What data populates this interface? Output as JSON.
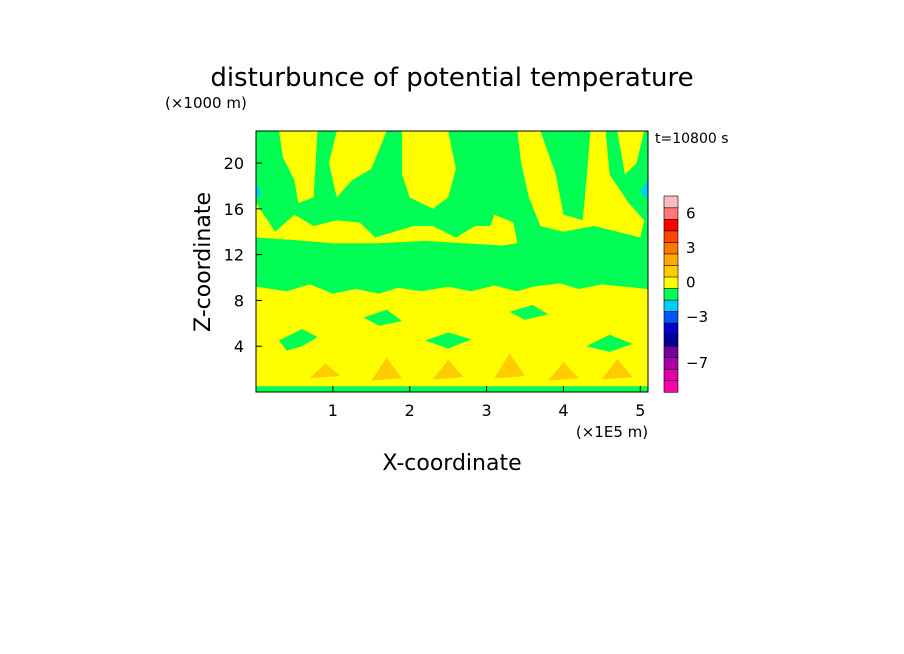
{
  "chart_data": {
    "type": "heatmap",
    "title": "disturbunce of potential temperature",
    "time_label": "t=10800 s",
    "xlabel": "X-coordinate",
    "ylabel": "Z-coordinate",
    "x_unit": "(×1E5 m)",
    "y_unit": "(×1000 m)",
    "xlim": [
      0,
      5.1
    ],
    "ylim": [
      0,
      22.8
    ],
    "x_ticks": [
      1,
      2,
      3,
      4,
      5
    ],
    "y_ticks": [
      4,
      8,
      12,
      16,
      20
    ],
    "background_color": "#00ff55",
    "colorbar": {
      "colors": [
        "#ff00aa",
        "#dd00aa",
        "#aa00aa",
        "#770099",
        "#000099",
        "#0000cc",
        "#0055ff",
        "#00ccff",
        "#00ff55",
        "#ffff00",
        "#ffcc00",
        "#ffaa00",
        "#ff7700",
        "#ff4400",
        "#ff0000",
        "#ff7777",
        "#ffbbbb"
      ],
      "tick_labels": [
        {
          "label": "6",
          "level": 15
        },
        {
          "label": "3",
          "level": 12
        },
        {
          "label": "0",
          "level": 9
        },
        {
          "label": "−3",
          "level": 6
        },
        {
          "label": "−7",
          "level": 2
        }
      ]
    },
    "regions": [
      {
        "name": "upper-yellow",
        "color": "#ffff00",
        "polygon": [
          [
            0.05,
            22.8
          ],
          [
            0.3,
            22.8
          ],
          [
            0.35,
            20.5
          ],
          [
            0.5,
            18.5
          ],
          [
            0.55,
            16.5
          ],
          [
            0.75,
            17
          ],
          [
            0.8,
            22.8
          ],
          [
            1.05,
            22.8
          ],
          [
            0.95,
            20
          ],
          [
            1.05,
            17
          ],
          [
            1.25,
            18.5
          ],
          [
            1.5,
            19.5
          ],
          [
            1.7,
            22.8
          ],
          [
            0.05,
            22.8
          ]
        ]
      },
      {
        "name": "upper-yellow-2",
        "color": "#ffff00",
        "polygon": [
          [
            1.9,
            22.8
          ],
          [
            2.5,
            22.8
          ],
          [
            2.6,
            19.5
          ],
          [
            2.5,
            17
          ],
          [
            2.3,
            16
          ],
          [
            2.0,
            17
          ],
          [
            1.9,
            19
          ]
        ]
      },
      {
        "name": "upper-yellow-3",
        "color": "#ffff00",
        "polygon": [
          [
            3.4,
            22.8
          ],
          [
            3.7,
            22.8
          ],
          [
            3.9,
            19
          ],
          [
            4.0,
            15.5
          ],
          [
            4.25,
            15
          ],
          [
            4.3,
            18.5
          ],
          [
            4.35,
            22.8
          ],
          [
            4.55,
            22.8
          ],
          [
            4.6,
            19
          ],
          [
            4.85,
            16.5
          ],
          [
            5.05,
            15
          ],
          [
            5.0,
            13.5
          ],
          [
            4.7,
            14
          ],
          [
            4.4,
            14.5
          ],
          [
            4.0,
            14
          ],
          [
            3.7,
            14.5
          ],
          [
            3.55,
            17
          ],
          [
            3.45,
            20
          ]
        ]
      },
      {
        "name": "upper-yellow-4",
        "color": "#ffff00",
        "polygon": [
          [
            4.7,
            22.8
          ],
          [
            5.05,
            22.8
          ],
          [
            4.95,
            20
          ],
          [
            4.8,
            19
          ]
        ]
      },
      {
        "name": "mid-yellow-left",
        "color": "#ffff00",
        "polygon": [
          [
            0.0,
            16.5
          ],
          [
            0.25,
            14
          ],
          [
            0.5,
            15.5
          ],
          [
            0.75,
            14.5
          ],
          [
            1.05,
            15
          ],
          [
            1.35,
            14.8
          ],
          [
            1.55,
            13.5
          ],
          [
            1.8,
            14
          ],
          [
            2.05,
            14.5
          ],
          [
            2.3,
            14.5
          ],
          [
            2.6,
            13.5
          ],
          [
            2.85,
            14.5
          ],
          [
            3.05,
            14.5
          ],
          [
            3.1,
            15.5
          ],
          [
            3.35,
            14.8
          ],
          [
            3.4,
            13
          ],
          [
            3.2,
            12.8
          ],
          [
            2.7,
            13
          ],
          [
            2.2,
            13.2
          ],
          [
            1.6,
            13
          ],
          [
            1.0,
            13
          ],
          [
            0.45,
            13.3
          ],
          [
            0.0,
            13.5
          ]
        ]
      },
      {
        "name": "lower-yellow",
        "color": "#ffff00",
        "polygon": [
          [
            0.0,
            9.2
          ],
          [
            0.4,
            8.8
          ],
          [
            0.7,
            9.4
          ],
          [
            1.0,
            8.6
          ],
          [
            1.3,
            9
          ],
          [
            1.6,
            8.6
          ],
          [
            1.85,
            9.1
          ],
          [
            2.15,
            8.8
          ],
          [
            2.5,
            9.2
          ],
          [
            2.8,
            8.8
          ],
          [
            3.1,
            9.3
          ],
          [
            3.4,
            8.8
          ],
          [
            3.6,
            9.2
          ],
          [
            3.95,
            9.5
          ],
          [
            4.2,
            9.0
          ],
          [
            4.5,
            9.4
          ],
          [
            4.8,
            9.2
          ],
          [
            5.1,
            9.0
          ],
          [
            5.1,
            0.0
          ],
          [
            0.0,
            0.0
          ]
        ]
      },
      {
        "name": "bottom-strip-green",
        "color": "#00ff55",
        "polygon": [
          [
            0.0,
            0.0
          ],
          [
            5.1,
            0.0
          ],
          [
            5.1,
            0.5
          ],
          [
            0.0,
            0.5
          ]
        ]
      },
      {
        "name": "green-patch-1",
        "color": "#00ff55",
        "polygon": [
          [
            0.3,
            4.5
          ],
          [
            0.6,
            5.5
          ],
          [
            0.8,
            4.8
          ],
          [
            0.6,
            4.0
          ],
          [
            0.4,
            3.6
          ]
        ]
      },
      {
        "name": "green-patch-2",
        "color": "#00ff55",
        "polygon": [
          [
            1.4,
            6.5
          ],
          [
            1.7,
            7.2
          ],
          [
            1.9,
            6.2
          ],
          [
            1.6,
            5.8
          ]
        ]
      },
      {
        "name": "green-patch-3",
        "color": "#00ff55",
        "polygon": [
          [
            2.2,
            4.5
          ],
          [
            2.5,
            5.2
          ],
          [
            2.8,
            4.6
          ],
          [
            2.5,
            3.8
          ]
        ]
      },
      {
        "name": "green-patch-4",
        "color": "#00ff55",
        "polygon": [
          [
            3.3,
            7.0
          ],
          [
            3.6,
            7.6
          ],
          [
            3.8,
            6.8
          ],
          [
            3.5,
            6.3
          ]
        ]
      },
      {
        "name": "green-patch-5",
        "color": "#00ff55",
        "polygon": [
          [
            4.3,
            4.0
          ],
          [
            4.6,
            5.0
          ],
          [
            4.9,
            4.2
          ],
          [
            4.6,
            3.5
          ]
        ]
      },
      {
        "name": "orange-patch-1",
        "color": "#ffcc00",
        "polygon": [
          [
            0.7,
            1.2
          ],
          [
            0.9,
            2.5
          ],
          [
            1.1,
            1.4
          ]
        ]
      },
      {
        "name": "orange-patch-2",
        "color": "#ffcc00",
        "polygon": [
          [
            1.5,
            1.0
          ],
          [
            1.7,
            3.0
          ],
          [
            1.9,
            1.2
          ]
        ]
      },
      {
        "name": "orange-patch-3",
        "color": "#ffcc00",
        "polygon": [
          [
            2.3,
            1.1
          ],
          [
            2.5,
            2.8
          ],
          [
            2.7,
            1.3
          ]
        ]
      },
      {
        "name": "orange-patch-4",
        "color": "#ffcc00",
        "polygon": [
          [
            3.1,
            1.2
          ],
          [
            3.3,
            3.4
          ],
          [
            3.5,
            1.4
          ]
        ]
      },
      {
        "name": "orange-patch-5",
        "color": "#ffcc00",
        "polygon": [
          [
            3.8,
            1.0
          ],
          [
            4.0,
            2.6
          ],
          [
            4.2,
            1.2
          ]
        ]
      },
      {
        "name": "orange-patch-6",
        "color": "#ffcc00",
        "polygon": [
          [
            4.5,
            1.1
          ],
          [
            4.7,
            2.9
          ],
          [
            4.9,
            1.3
          ]
        ]
      },
      {
        "name": "cyan-patch-right",
        "color": "#00ccff",
        "polygon": [
          [
            5.0,
            17.5
          ],
          [
            5.1,
            16.8
          ],
          [
            5.1,
            18.6
          ]
        ]
      },
      {
        "name": "cyan-patch-left",
        "color": "#00ccff",
        "polygon": [
          [
            0.0,
            17.2
          ],
          [
            0.05,
            16.9
          ],
          [
            0.05,
            17.8
          ],
          [
            0.0,
            18.0
          ]
        ]
      }
    ]
  }
}
